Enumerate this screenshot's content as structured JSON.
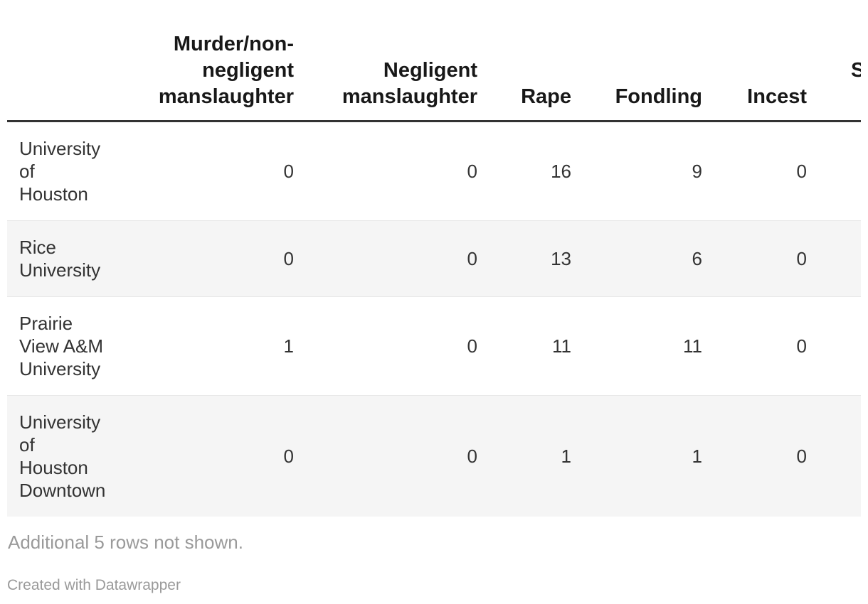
{
  "table": {
    "columns": [
      {
        "key": "name",
        "label": ""
      },
      {
        "key": "murder",
        "label": "Murder/non-\nnegligent\nmanslaughter"
      },
      {
        "key": "negligent",
        "label": "Negligent\nmanslaughter"
      },
      {
        "key": "rape",
        "label": "Rape"
      },
      {
        "key": "fondling",
        "label": "Fondling"
      },
      {
        "key": "incest",
        "label": "Incest"
      },
      {
        "key": "clipped",
        "label": "S"
      }
    ],
    "rows": [
      {
        "name": "University\nof\nHouston",
        "values": [
          "0",
          "0",
          "16",
          "9",
          "0",
          ""
        ]
      },
      {
        "name": "Rice\nUniversity",
        "values": [
          "0",
          "0",
          "13",
          "6",
          "0",
          ""
        ]
      },
      {
        "name": "Prairie\nView A&M\nUniversity",
        "values": [
          "1",
          "0",
          "11",
          "11",
          "0",
          ""
        ]
      },
      {
        "name": "University\nof\nHouston\nDowntown",
        "values": [
          "0",
          "0",
          "1",
          "1",
          "0",
          ""
        ]
      }
    ],
    "note": "Additional 5 rows not shown.",
    "attribution": "Created with Datawrapper"
  },
  "colors": {
    "header_text": "#181818",
    "body_text": "#333333",
    "header_rule": "#333333",
    "row_stripe": "#f5f5f5",
    "row_border": "#e8e8e8",
    "muted_text": "#9a9a9a",
    "background": "#ffffff"
  },
  "chart_data": {
    "type": "table",
    "columns": [
      "",
      "Murder/non-negligent manslaughter",
      "Negligent manslaughter",
      "Rape",
      "Fondling",
      "Incest",
      "S"
    ],
    "rows": [
      [
        "University of Houston",
        0,
        0,
        16,
        9,
        0
      ],
      [
        "Rice University",
        0,
        0,
        13,
        6,
        0
      ],
      [
        "Prairie View A&M University",
        1,
        0,
        11,
        11,
        0
      ],
      [
        "University of Houston Downtown",
        0,
        0,
        1,
        1,
        0
      ]
    ],
    "note": "Additional 5 rows not shown.",
    "attribution": "Created with Datawrapper",
    "layout_hints": {
      "striped_rows": true,
      "numeric_alignment": "right",
      "last_column_clipped_at_right_edge": true
    }
  }
}
